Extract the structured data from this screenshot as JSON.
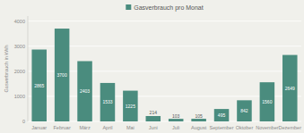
{
  "chart_data": {
    "type": "bar",
    "categories": [
      "Januar",
      "Februar",
      "März",
      "April",
      "Mai",
      "Juni",
      "Juli",
      "August",
      "September",
      "Oktober",
      "November",
      "Dezember"
    ],
    "series": [
      {
        "name": "Gasverbrauch pro Monat",
        "color": "#4a8c7e",
        "values": [
          2865,
          3700,
          2403,
          1533,
          1225,
          214,
          103,
          105,
          495,
          842,
          1560,
          2649
        ]
      }
    ],
    "ylabel": "Gasverbrauch in kWh",
    "ylim": [
      0,
      4200
    ],
    "yticks": [
      0,
      1000,
      2000,
      3000,
      4000
    ],
    "grid": true,
    "legend": "top",
    "data_labels": true
  }
}
